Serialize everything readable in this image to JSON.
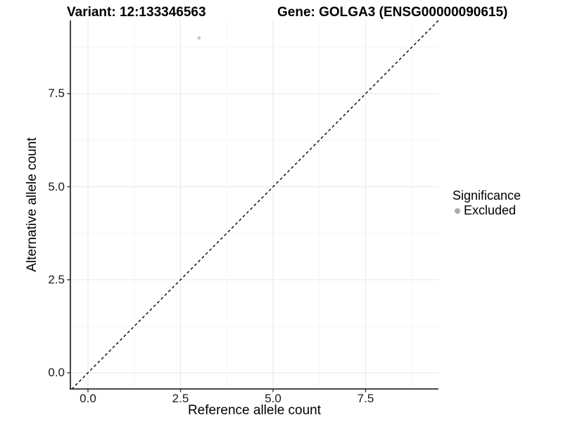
{
  "chart_data": {
    "type": "scatter",
    "title_left": "Variant: 12:133346563",
    "title_right": "Gene: GOLGA3 (ENSG00000090615)",
    "xlabel": "Reference allele count",
    "ylabel": "Alternative allele count",
    "xlim": [
      -0.47,
      9.47
    ],
    "ylim": [
      -0.44,
      9.47
    ],
    "x_ticks": [
      {
        "v": 0.0,
        "label": "0.0"
      },
      {
        "v": 2.5,
        "label": "2.5"
      },
      {
        "v": 5.0,
        "label": "5.0"
      },
      {
        "v": 7.5,
        "label": "7.5"
      }
    ],
    "y_ticks": [
      {
        "v": 0.0,
        "label": "0.0"
      },
      {
        "v": 2.5,
        "label": "2.5"
      },
      {
        "v": 5.0,
        "label": "5.0"
      },
      {
        "v": 7.5,
        "label": "7.5"
      }
    ],
    "grid": {
      "minor_x": [
        1.25,
        3.75,
        6.25,
        8.75
      ],
      "minor_y": [
        1.25,
        3.75,
        6.25,
        8.75
      ]
    },
    "points": [
      {
        "x": 3,
        "y": 9,
        "significance": "Excluded"
      }
    ],
    "reference_line": {
      "slope": 1,
      "intercept": 0,
      "style": "dashed",
      "color": "#000000"
    },
    "legend": {
      "title": "Significance",
      "position": "right",
      "entries": [
        {
          "label": "Excluded",
          "color": "#adadad"
        }
      ]
    },
    "colors": {
      "point": "#c4c4c4",
      "grid_major": "#ebebeb",
      "grid_minor": "#f5f5f5",
      "axis": "#2f2f2f",
      "background": "#ffffff"
    }
  }
}
